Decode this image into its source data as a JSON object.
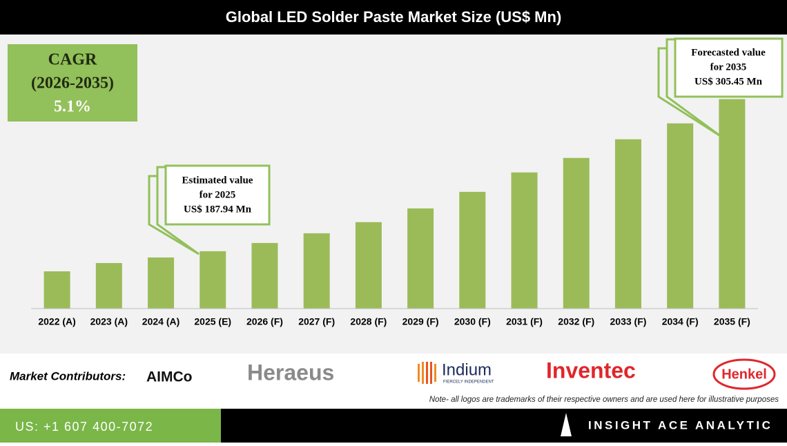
{
  "chart_data": {
    "type": "bar",
    "title": "Global LED Solder Paste Market Size (US$ Mn)",
    "categories": [
      "2022 (A)",
      "2023 (A)",
      "2024 (A)",
      "2025 (E)",
      "2026 (F)",
      "2027 (F)",
      "2028 (F)",
      "2029 (F)",
      "2030 (F)",
      "2031 (F)",
      "2032 (F)",
      "2033 (F)",
      "2034 (F)",
      "2035 (F)"
    ],
    "values": [
      172.4,
      178.8,
      183.1,
      187.94,
      194.3,
      201.8,
      210.4,
      221.0,
      233.8,
      248.8,
      260.0,
      274.4,
      286.7,
      305.45
    ],
    "color": "#9bbb59",
    "ylim": [
      143.6,
      350
    ]
  },
  "cagr": {
    "label": "CAGR",
    "period": "(2026-2035)",
    "value": "5.1%"
  },
  "callouts": [
    {
      "lines": [
        "Estimated value",
        "for 2025",
        "US$ 187.94 Mn"
      ]
    },
    {
      "lines": [
        "Forecasted value",
        "for 2035",
        "US$ 305.45 Mn"
      ]
    }
  ],
  "contributors": {
    "label": "Market Contributors:",
    "logos": [
      "AIMCo",
      "Heraeus",
      "Indium",
      "FIERCELY INDEPENDENT",
      "Inventec",
      "Henkel"
    ]
  },
  "note": "Note- all logos are trademarks of their respective owners and are used here for illustrative purposes",
  "footer": {
    "phone": "US: +1 607 400-7072",
    "brand": "INSIGHT ACE ANALYTIC"
  }
}
